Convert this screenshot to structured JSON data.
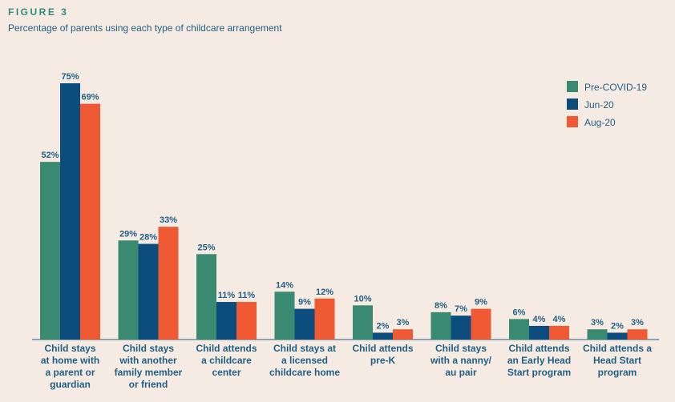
{
  "header": {
    "figure_label": "FIGURE 3",
    "subtitle": "Percentage of parents using each type of childcare arrangement"
  },
  "chart_data": {
    "type": "bar",
    "ylim": [
      0,
      80
    ],
    "categories": [
      [
        "Child stays",
        "at home with",
        "a parent or",
        "guardian"
      ],
      [
        "Child stays",
        "with another",
        "family member",
        "or friend"
      ],
      [
        "Child attends",
        "a childcare",
        "center"
      ],
      [
        "Child stays at",
        "a licensed",
        "childcare home"
      ],
      [
        "Child attends",
        "pre-K"
      ],
      [
        "Child stays",
        "with a nanny/",
        "au pair"
      ],
      [
        "Child attends",
        "an Early Head",
        "Start program"
      ],
      [
        "Child attends a",
        "Head Start",
        "program"
      ]
    ],
    "series": [
      {
        "name": "Pre-COVID-19",
        "color": "#3a8a72",
        "values": [
          52,
          29,
          25,
          14,
          10,
          8,
          6,
          3
        ]
      },
      {
        "name": "Jun-20",
        "color": "#0d4d7d",
        "values": [
          75,
          28,
          11,
          9,
          2,
          7,
          4,
          2
        ]
      },
      {
        "name": "Aug-20",
        "color": "#ef5a35",
        "values": [
          69,
          33,
          11,
          12,
          3,
          9,
          4,
          3
        ]
      }
    ],
    "value_suffix": "%",
    "legend_position": "top-right",
    "grid": false
  }
}
